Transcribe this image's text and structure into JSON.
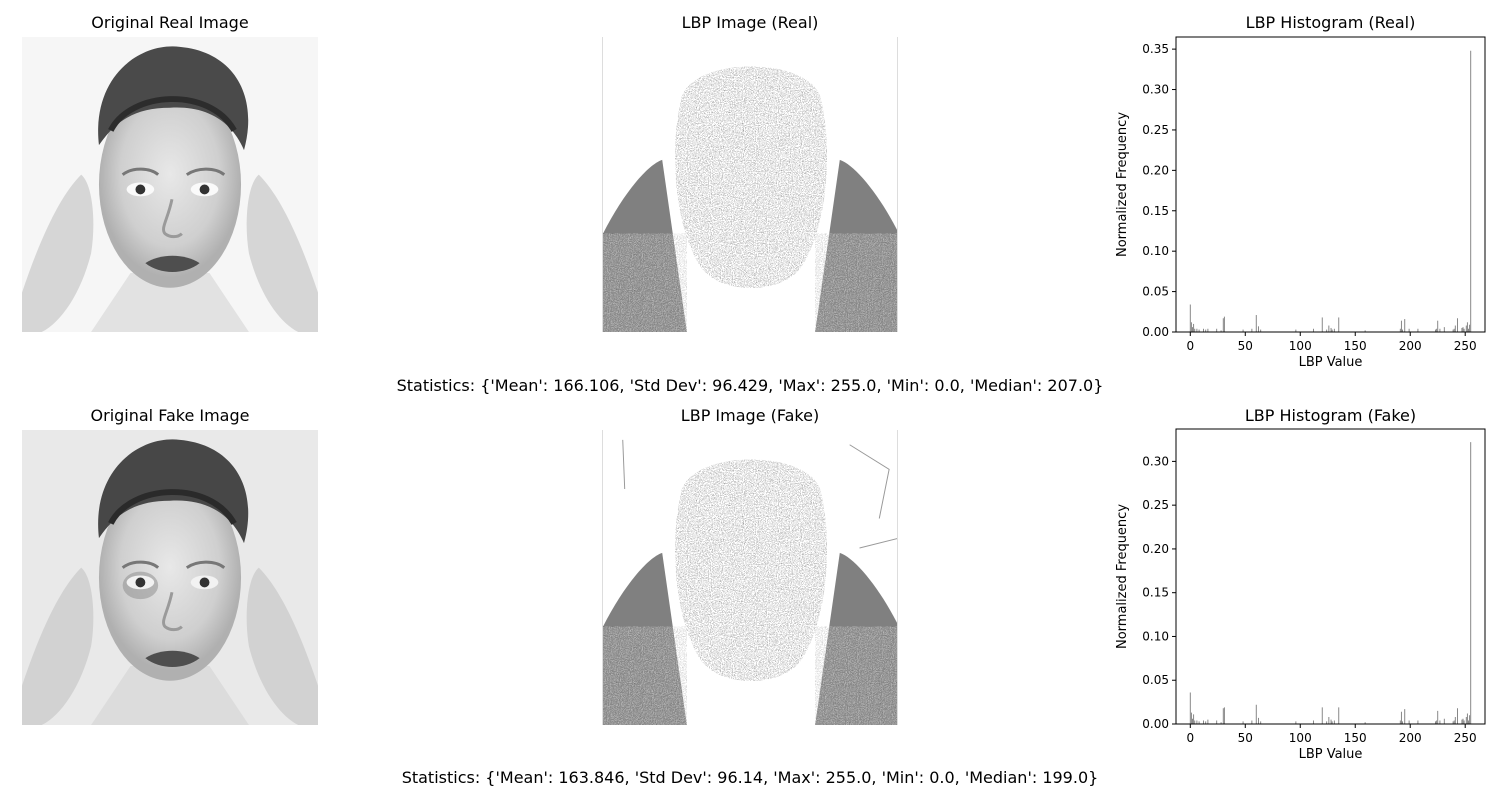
{
  "rows": [
    {
      "photo_title": "Original Real Image",
      "lbp_title": "LBP Image (Real)",
      "stats": "Statistics: {'Mean': 166.106, 'Std Dev': 96.429, 'Max': 255.0, 'Min': 0.0, 'Median': 207.0}"
    },
    {
      "photo_title": "Original Fake Image",
      "lbp_title": "LBP Image (Fake)",
      "stats": "Statistics: {'Mean': 163.846, 'Std Dev': 96.14, 'Max': 255.0, 'Min': 0.0, 'Median': 199.0}"
    }
  ],
  "colors": {
    "bar": "#808080",
    "axis": "#000000",
    "background": "#ffffff"
  },
  "chart_data": [
    {
      "type": "bar",
      "title": "LBP Histogram (Real)",
      "xlabel": "LBP Value",
      "ylabel": "Normalized Frequency",
      "xlim": [
        -13,
        268
      ],
      "ylim": [
        0,
        0.365
      ],
      "xticks": [
        0,
        50,
        100,
        150,
        200,
        250
      ],
      "xtick_labels": [
        "0",
        "50",
        "100",
        "150",
        "200",
        "250"
      ],
      "yticks": [
        0,
        0.05,
        0.1,
        0.15,
        0.2,
        0.25,
        0.3,
        0.35
      ],
      "ytick_labels": [
        "0.00",
        "0.05",
        "0.10",
        "0.15",
        "0.20",
        "0.25",
        "0.30",
        "0.35"
      ],
      "grid": false,
      "x": [
        0,
        1,
        2,
        3,
        4,
        6,
        8,
        12,
        14,
        16,
        24,
        28,
        30,
        31,
        48,
        56,
        60,
        62,
        64,
        96,
        112,
        120,
        124,
        126,
        128,
        129,
        131,
        135,
        159,
        191,
        192,
        193,
        195,
        199,
        207,
        223,
        224,
        225,
        227,
        231,
        239,
        240,
        241,
        243,
        247,
        248,
        249,
        251,
        252,
        253,
        254,
        255
      ],
      "values": [
        0.034,
        0.012,
        0.006,
        0.01,
        0.004,
        0.004,
        0.003,
        0.004,
        0.003,
        0.004,
        0.004,
        0.002,
        0.017,
        0.019,
        0.003,
        0.004,
        0.021,
        0.007,
        0.003,
        0.003,
        0.004,
        0.018,
        0.003,
        0.008,
        0.005,
        0.003,
        0.004,
        0.018,
        0.002,
        0.004,
        0.014,
        0.003,
        0.016,
        0.004,
        0.004,
        0.003,
        0.004,
        0.014,
        0.004,
        0.006,
        0.003,
        0.004,
        0.008,
        0.017,
        0.005,
        0.006,
        0.004,
        0.008,
        0.012,
        0.004,
        0.009,
        0.348
      ]
    },
    {
      "type": "bar",
      "title": "LBP Histogram (Fake)",
      "xlabel": "LBP Value",
      "ylabel": "Normalized Frequency",
      "xlim": [
        -13,
        268
      ],
      "ylim": [
        0,
        0.337
      ],
      "xticks": [
        0,
        50,
        100,
        150,
        200,
        250
      ],
      "xtick_labels": [
        "0",
        "50",
        "100",
        "150",
        "200",
        "250"
      ],
      "yticks": [
        0,
        0.05,
        0.1,
        0.15,
        0.2,
        0.25,
        0.3
      ],
      "ytick_labels": [
        "0.00",
        "0.05",
        "0.10",
        "0.15",
        "0.20",
        "0.25",
        "0.30"
      ],
      "grid": false,
      "x": [
        0,
        1,
        2,
        3,
        4,
        6,
        8,
        12,
        14,
        16,
        24,
        28,
        30,
        31,
        48,
        56,
        60,
        62,
        64,
        96,
        112,
        120,
        124,
        126,
        128,
        129,
        131,
        135,
        159,
        191,
        192,
        193,
        195,
        199,
        207,
        223,
        224,
        225,
        227,
        231,
        239,
        240,
        241,
        243,
        247,
        248,
        249,
        251,
        252,
        253,
        254,
        255
      ],
      "values": [
        0.036,
        0.013,
        0.006,
        0.011,
        0.004,
        0.004,
        0.003,
        0.004,
        0.003,
        0.005,
        0.004,
        0.002,
        0.018,
        0.019,
        0.003,
        0.004,
        0.022,
        0.007,
        0.003,
        0.003,
        0.004,
        0.019,
        0.003,
        0.008,
        0.005,
        0.003,
        0.004,
        0.019,
        0.002,
        0.004,
        0.014,
        0.003,
        0.017,
        0.004,
        0.004,
        0.003,
        0.004,
        0.015,
        0.004,
        0.006,
        0.003,
        0.004,
        0.008,
        0.018,
        0.005,
        0.006,
        0.004,
        0.008,
        0.012,
        0.004,
        0.01,
        0.322
      ]
    }
  ]
}
